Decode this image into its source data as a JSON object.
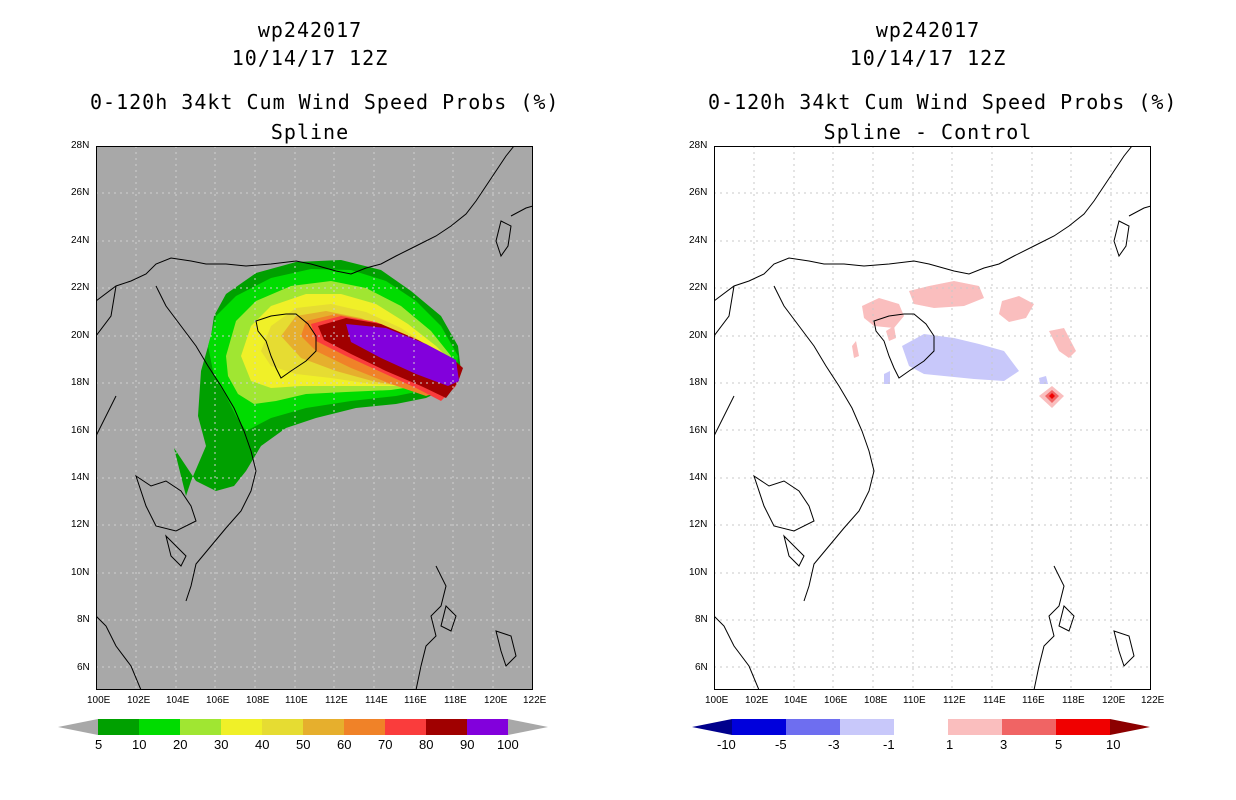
{
  "panels": [
    {
      "id": "left",
      "storm": "wp242017",
      "date": "10/14/17 12Z",
      "product": "0-120h 34kt Cum Wind Speed Probs (%)",
      "method": "Spline",
      "background": "#a8a8a8"
    },
    {
      "id": "right",
      "storm": "wp242017",
      "date": "10/14/17 12Z",
      "product": "0-120h 34kt Cum Wind Speed Probs (%)",
      "method": "Spline - Control",
      "background": "#ffffff"
    }
  ],
  "lat_labels": [
    "28N",
    "26N",
    "24N",
    "22N",
    "20N",
    "18N",
    "16N",
    "14N",
    "12N",
    "10N",
    "8N",
    "6N"
  ],
  "lon_labels": [
    "100E",
    "102E",
    "104E",
    "106E",
    "108E",
    "110E",
    "112E",
    "114E",
    "116E",
    "118E",
    "120E",
    "122E"
  ],
  "prob_legend": {
    "labels": [
      "5",
      "10",
      "20",
      "30",
      "40",
      "50",
      "60",
      "70",
      "80",
      "90",
      "100"
    ],
    "colors": [
      "#00a000",
      "#00dc00",
      "#a0e632",
      "#f0f028",
      "#e6dc32",
      "#e6af2d",
      "#f08228",
      "#fa3c3c",
      "#a00000",
      "#8200dc"
    ],
    "end_color": "#a8a8a8"
  },
  "diff_legend": {
    "labels": [
      "-10",
      "-5",
      "-3",
      "-1",
      "1",
      "3",
      "5",
      "10"
    ],
    "colors": [
      "#0000dc",
      "#6e6ef0",
      "#c8c8fa",
      "#ffffff",
      "#fabebe",
      "#f06464",
      "#f00000"
    ],
    "low_end_color": "#00008c",
    "high_end_color": "#8c0000"
  }
}
